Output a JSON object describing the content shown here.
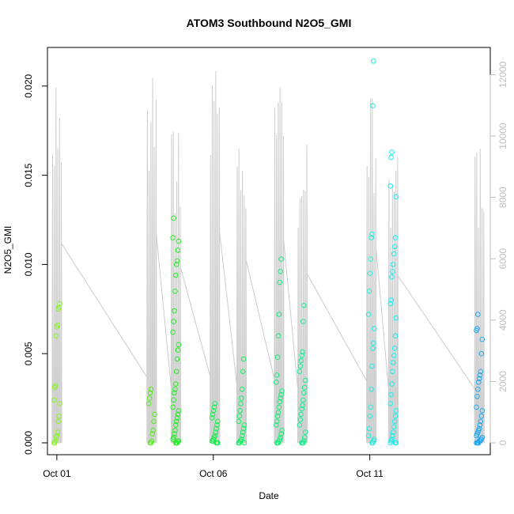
{
  "chart_data": {
    "type": "scatter",
    "title": "ATOM3 Southbound N2O5_GMI",
    "xlabel": "Date",
    "ylabel": "N2O5_GMI",
    "x_ticks": [
      "Oct 01",
      "Oct 06",
      "Oct 11"
    ],
    "y_ticks": [
      "0.000",
      "0.005",
      "0.010",
      "0.015",
      "0.020"
    ],
    "y2_ticks": [
      "0",
      "2000",
      "4000",
      "6000",
      "8000",
      "10000",
      "12000"
    ],
    "ylim": [
      0,
      0.0215
    ],
    "y2lim": [
      0,
      12500
    ],
    "xlim_days": [
      0.7,
      14.85
    ],
    "grid": false,
    "legend": "none",
    "colors": {
      "altitude_line": "#cccccc",
      "right_axis": "#bdbdbd"
    },
    "series": [
      {
        "day": 1.0,
        "color": "#8cf52a",
        "values": [
          0.0,
          0.0,
          0.0001,
          0.0003,
          0.0004,
          0.0006,
          0.0012,
          0.0015,
          0.0022,
          0.0024,
          0.0031,
          0.0032,
          0.006,
          0.0065,
          0.0066,
          0.0075,
          0.0076,
          0.0078
        ]
      },
      {
        "day": 4.03,
        "color": "#52f019",
        "values": [
          0.0,
          0.0,
          0.0001,
          0.0005,
          0.0007,
          0.0012,
          0.0016,
          0.0022,
          0.0025,
          0.0028,
          0.003
        ]
      },
      {
        "day": 4.8,
        "color": "#22ee22",
        "values": [
          0.0,
          0.0,
          0.0,
          0.0001,
          0.0001,
          0.0002,
          0.0003,
          0.0005,
          0.0007,
          0.001,
          0.0012,
          0.0014,
          0.0016,
          0.0018,
          0.002,
          0.0024,
          0.0028,
          0.003,
          0.0033,
          0.004,
          0.0047,
          0.0052,
          0.0055,
          0.0062,
          0.0068,
          0.0074,
          0.0085,
          0.0094,
          0.01,
          0.0102,
          0.0108,
          0.0113,
          0.0115,
          0.0126
        ]
      },
      {
        "day": 6.05,
        "color": "#14f04a",
        "values": [
          0.0,
          0.0,
          0.0,
          0.0001,
          0.0001,
          0.0002,
          0.0003,
          0.0004,
          0.0006,
          0.0008,
          0.001,
          0.0012,
          0.0014,
          0.0016,
          0.0018,
          0.002,
          0.0022
        ]
      },
      {
        "day": 6.9,
        "color": "#14f060",
        "values": [
          0.0,
          0.0,
          0.0,
          0.0001,
          0.0001,
          0.0002,
          0.0004,
          0.0006,
          0.0008,
          0.001,
          0.0012,
          0.0015,
          0.0018,
          0.0022,
          0.0025,
          0.003,
          0.004,
          0.0047
        ]
      },
      {
        "day": 8.1,
        "color": "#14f078",
        "values": [
          0.0,
          0.0,
          0.0,
          0.0001,
          0.0002,
          0.0003,
          0.0005,
          0.0007,
          0.001,
          0.0012,
          0.0015,
          0.0017,
          0.002,
          0.0023,
          0.0025,
          0.0027,
          0.0029,
          0.0034,
          0.0038,
          0.0048,
          0.006,
          0.0072,
          0.009,
          0.0096,
          0.0103
        ]
      },
      {
        "day": 8.85,
        "color": "#14f090",
        "values": [
          0.0,
          0.0,
          0.0,
          0.0001,
          0.0003,
          0.0006,
          0.001,
          0.0013,
          0.0016,
          0.0019,
          0.0021,
          0.0024,
          0.0028,
          0.0031,
          0.0035,
          0.004,
          0.0043,
          0.0046,
          0.0049,
          0.0051,
          0.0068,
          0.0077
        ]
      },
      {
        "day": 11.05,
        "color": "#22eedd",
        "values": [
          0.0,
          0.0,
          0.0001,
          0.0002,
          0.0004,
          0.0008,
          0.0015,
          0.002,
          0.003,
          0.0043,
          0.0053,
          0.0056,
          0.0064,
          0.0072,
          0.0085,
          0.0095,
          0.0103,
          0.0115,
          0.0117,
          0.0189,
          0.0214
        ]
      },
      {
        "day": 11.75,
        "color": "#14f0f0",
        "values": [
          0.0,
          0.0,
          0.0,
          0.0001,
          0.0002,
          0.0004,
          0.0006,
          0.0009,
          0.0012,
          0.0015,
          0.0018,
          0.0022,
          0.0027,
          0.0033,
          0.004,
          0.0045,
          0.0049,
          0.0053,
          0.006,
          0.007,
          0.0078,
          0.008,
          0.0093,
          0.0096,
          0.01,
          0.0106,
          0.011,
          0.0115,
          0.0138,
          0.0144,
          0.016,
          0.0163
        ]
      },
      {
        "day": 14.5,
        "color": "#1ea8f0",
        "values": [
          0.0,
          0.0,
          0.0,
          0.0,
          0.0001,
          0.0001,
          0.0002,
          0.0002,
          0.0003,
          0.0004,
          0.0005,
          0.0006,
          0.0007,
          0.0008,
          0.001,
          0.0012,
          0.0015,
          0.0018,
          0.002,
          0.0026,
          0.003,
          0.0034,
          0.0036,
          0.0038,
          0.004,
          0.005,
          0.0058,
          0.0063,
          0.0064,
          0.0072
        ]
      }
    ],
    "altitude_profiles": [
      {
        "day": 1.0,
        "max": 11800
      },
      {
        "day": 4.03,
        "max": 12300
      },
      {
        "day": 4.8,
        "max": 10400
      },
      {
        "day": 6.05,
        "max": 12500
      },
      {
        "day": 6.9,
        "max": 10800
      },
      {
        "day": 8.1,
        "max": 11900
      },
      {
        "day": 8.85,
        "max": 10000
      },
      {
        "day": 11.05,
        "max": 11500
      },
      {
        "day": 11.75,
        "max": 9900
      },
      {
        "day": 14.5,
        "max": 9800
      }
    ]
  }
}
